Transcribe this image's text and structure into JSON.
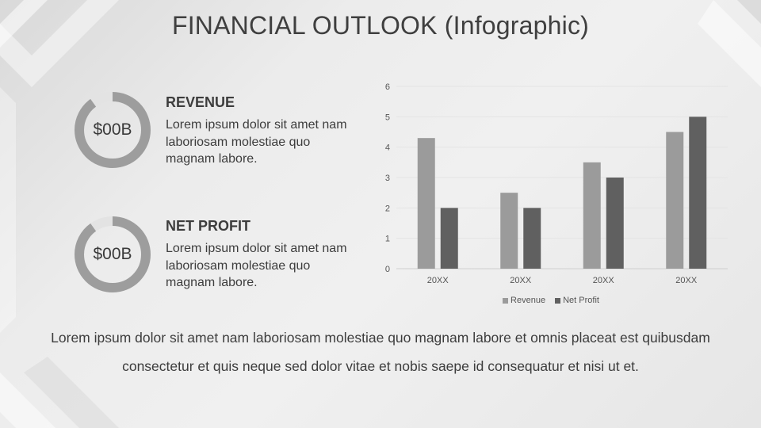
{
  "slide": {
    "title": "FINANCIAL OUTLOOK (Infographic)"
  },
  "metrics": [
    {
      "donut_label": "$00B",
      "heading": "REVENUE",
      "body": "Lorem ipsum dolor sit amet nam laboriosam molestiae quo magnam labore.",
      "fill_fraction": 0.9
    },
    {
      "donut_label": "$00B",
      "heading": "NET PROFIT",
      "body": "Lorem ipsum dolor sit amet nam laboriosam molestiae quo magnam labore.",
      "fill_fraction": 0.9
    }
  ],
  "footer": {
    "text": "Lorem ipsum dolor sit amet nam laboriosam molestiae quo magnam labore et omnis placeat est quibusdam consectetur et quis neque sed dolor vitae et nobis saepe id consequatur et nisi ut et."
  },
  "colors": {
    "revenue": "#9b9b9b",
    "net_profit": "#606060",
    "donut_fill": "#9d9d9d",
    "donut_track": "#e3e3e3"
  },
  "chart_data": {
    "type": "bar",
    "categories": [
      "20XX",
      "20XX",
      "20XX",
      "20XX"
    ],
    "series": [
      {
        "name": "Revenue",
        "values": [
          4.3,
          2.5,
          3.5,
          4.5
        ]
      },
      {
        "name": "Net Profit",
        "values": [
          2.0,
          2.0,
          3.0,
          5.0
        ]
      }
    ],
    "ylim": [
      0,
      6
    ],
    "yticks": [
      "0",
      "1",
      "2",
      "3",
      "4",
      "5",
      "6"
    ],
    "grid": true,
    "legend_position": "bottom"
  }
}
